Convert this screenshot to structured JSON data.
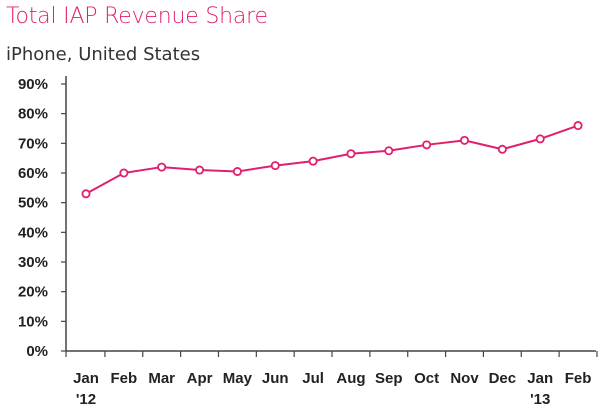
{
  "title": "Total IAP Revenue Share",
  "subtitle": "iPhone, United States",
  "colors": {
    "accent": "#e0206e",
    "axis": "#444444",
    "marker_fill": "#ffffff"
  },
  "chart_data": {
    "type": "line",
    "x": [
      "Jan",
      "Feb",
      "Mar",
      "Apr",
      "May",
      "Jun",
      "Jul",
      "Aug",
      "Sep",
      "Oct",
      "Nov",
      "Dec",
      "Jan",
      "Feb"
    ],
    "x_year_labels": {
      "0": "'12",
      "12": "'13"
    },
    "series": [
      {
        "values": [
          53,
          60,
          62,
          61,
          60.5,
          62.5,
          64,
          66.5,
          67.5,
          69.5,
          71,
          68,
          71.5,
          76
        ]
      }
    ],
    "yticks": [
      "0%",
      "10%",
      "20%",
      "30%",
      "40%",
      "50%",
      "60%",
      "70%",
      "80%",
      "90%"
    ],
    "ylim": [
      0,
      90
    ],
    "grid": false,
    "legend": "none"
  }
}
